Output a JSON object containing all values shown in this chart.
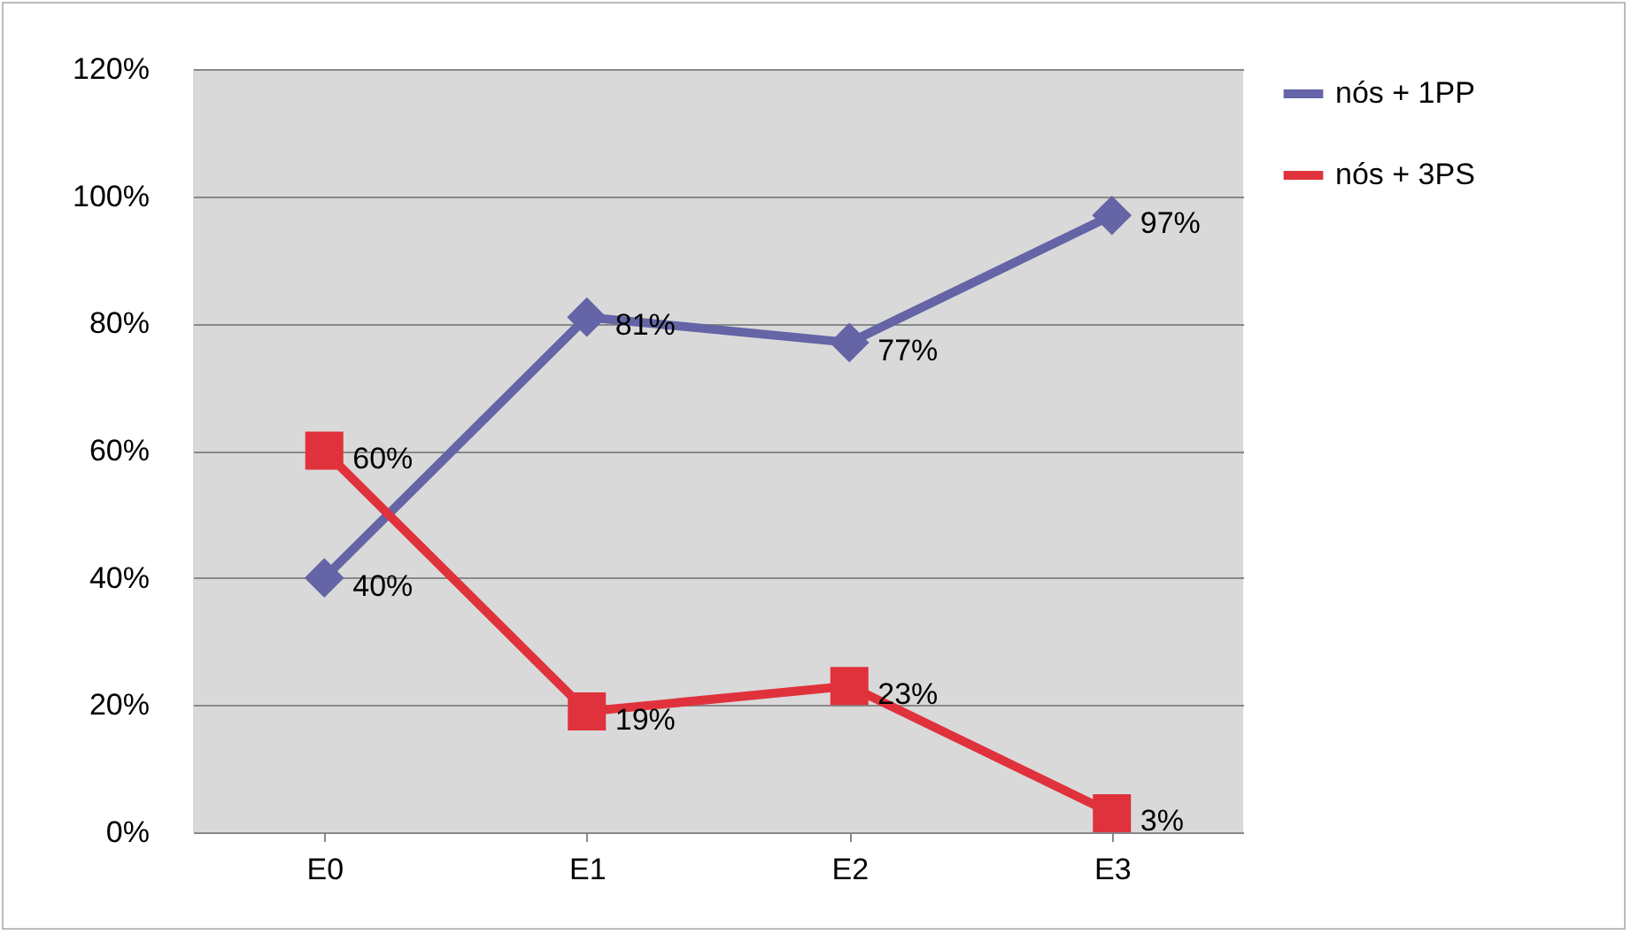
{
  "chart_data": {
    "type": "line",
    "categories": [
      "E0",
      "E1",
      "E2",
      "E3"
    ],
    "series": [
      {
        "name": "nós + 1PP",
        "color": "#6464a6",
        "marker": "diamond",
        "values": [
          40,
          81,
          77,
          97
        ],
        "value_labels": [
          "40%",
          "81%",
          "77%",
          "97%"
        ]
      },
      {
        "name": "nós + 3PS",
        "color": "#e0323c",
        "marker": "square",
        "values": [
          60,
          19,
          23,
          3
        ],
        "value_labels": [
          "60%",
          "19%",
          "23%",
          "3%"
        ]
      }
    ],
    "ylim": [
      0,
      120
    ],
    "yticks": [
      {
        "value": 0,
        "label": "0%"
      },
      {
        "value": 20,
        "label": "20%"
      },
      {
        "value": 40,
        "label": "40%"
      },
      {
        "value": 60,
        "label": "60%"
      },
      {
        "value": 80,
        "label": "80%"
      },
      {
        "value": 100,
        "label": "100%"
      },
      {
        "value": 120,
        "label": "120%"
      }
    ],
    "grid": "y",
    "legend": "right",
    "line_style": "solid"
  }
}
